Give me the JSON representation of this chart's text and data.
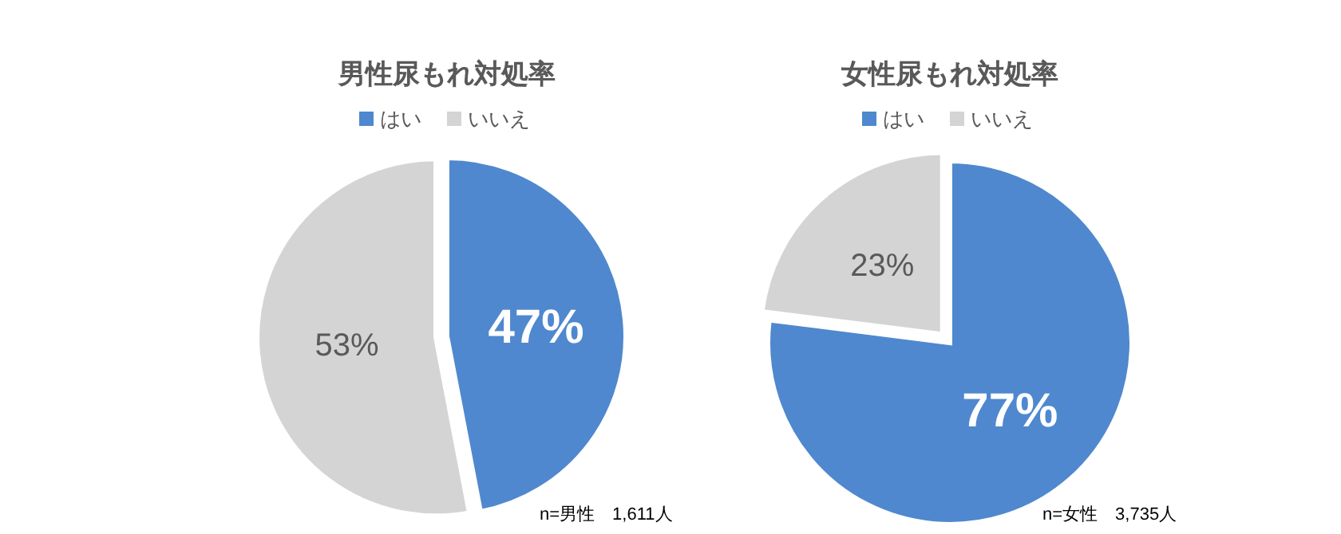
{
  "chart_data": [
    {
      "type": "pie",
      "title": "男性尿もれ対処率",
      "categories": [
        "はい",
        "いいえ"
      ],
      "values": [
        47,
        53
      ],
      "value_labels": [
        "47%",
        "53%"
      ],
      "colors": [
        "#4f88ce",
        "#d4d4d4"
      ],
      "legend": "top",
      "annotations": [
        "n=男性　1,611人"
      ]
    },
    {
      "type": "pie",
      "title": "女性尿もれ対処率",
      "categories": [
        "はい",
        "いいえ"
      ],
      "values": [
        77,
        23
      ],
      "value_labels": [
        "77%",
        "23%"
      ],
      "colors": [
        "#4f88ce",
        "#d4d4d4"
      ],
      "legend": "top",
      "annotations": [
        "n=女性　3,735人"
      ]
    }
  ]
}
